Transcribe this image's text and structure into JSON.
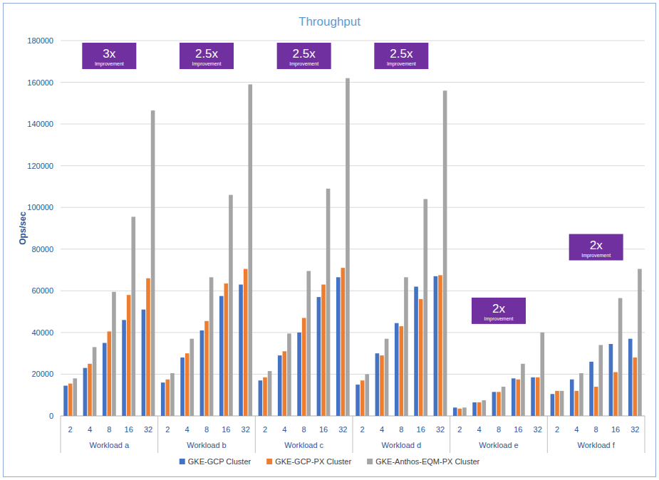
{
  "chart_data": {
    "type": "bar",
    "title": "Throughput",
    "y_label": "Ops/sec",
    "categories": [
      "2",
      "4",
      "8",
      "16",
      "32",
      "2",
      "4",
      "8",
      "16",
      "32",
      "2",
      "4",
      "8",
      "16",
      "32",
      "2",
      "4",
      "8",
      "16",
      "32",
      "2",
      "4",
      "8",
      "16",
      "32",
      "2",
      "4",
      "8",
      "16",
      "32"
    ],
    "group_labels": [
      "Workload a",
      "Workload b",
      "Workload c",
      "Workload d",
      "Workload e",
      "Workload f"
    ],
    "series": [
      {
        "name": "GKE-GCP Cluster",
        "color": "#4472c4",
        "values": [
          14500,
          23000,
          35000,
          46000,
          51000,
          16000,
          28000,
          41000,
          57500,
          63000,
          17000,
          29000,
          40000,
          57000,
          66500,
          15000,
          30000,
          44500,
          62000,
          67000,
          4000,
          6500,
          11500,
          18000,
          18500,
          10500,
          17500,
          26000,
          34500,
          37000
        ]
      },
      {
        "name": "GKE-GCP-PX Cluster",
        "color": "#ed7d31",
        "values": [
          15500,
          25000,
          40500,
          58000,
          66000,
          17500,
          30000,
          45500,
          63500,
          70500,
          18500,
          31000,
          47000,
          63000,
          71000,
          17000,
          29000,
          43000,
          56000,
          67500,
          3500,
          6500,
          11500,
          17500,
          18500,
          12000,
          12000,
          14000,
          21000,
          28000
        ]
      },
      {
        "name": "GKE-Anthos-EQM-PX Cluster",
        "color": "#a5a5a5",
        "values": [
          18000,
          33000,
          59500,
          95500,
          146500,
          20500,
          37000,
          66500,
          106000,
          159000,
          21500,
          39500,
          69500,
          109000,
          162000,
          20000,
          37000,
          66500,
          104000,
          156000,
          4000,
          7500,
          14000,
          25000,
          40000,
          12000,
          20500,
          34000,
          56500,
          70500
        ]
      }
    ],
    "annotations": [
      {
        "text": "3x",
        "subtext": "Improvement",
        "group": "Workload a"
      },
      {
        "text": "2.5x",
        "subtext": "Improvement",
        "group": "Workload b"
      },
      {
        "text": "2.5x",
        "subtext": "Improvement",
        "group": "Workload c"
      },
      {
        "text": "2.5x",
        "subtext": "Improvement",
        "group": "Workload d"
      },
      {
        "text": "2x",
        "subtext": "Improvement",
        "group": "Workload e"
      },
      {
        "text": "2x",
        "subtext": "Improvement",
        "group": "Workload f"
      }
    ],
    "ylim": [
      0,
      180000
    ],
    "yticks": [
      0,
      20000,
      40000,
      60000,
      80000,
      100000,
      120000,
      140000,
      160000,
      180000
    ],
    "grid": true,
    "legend": "bottom"
  }
}
